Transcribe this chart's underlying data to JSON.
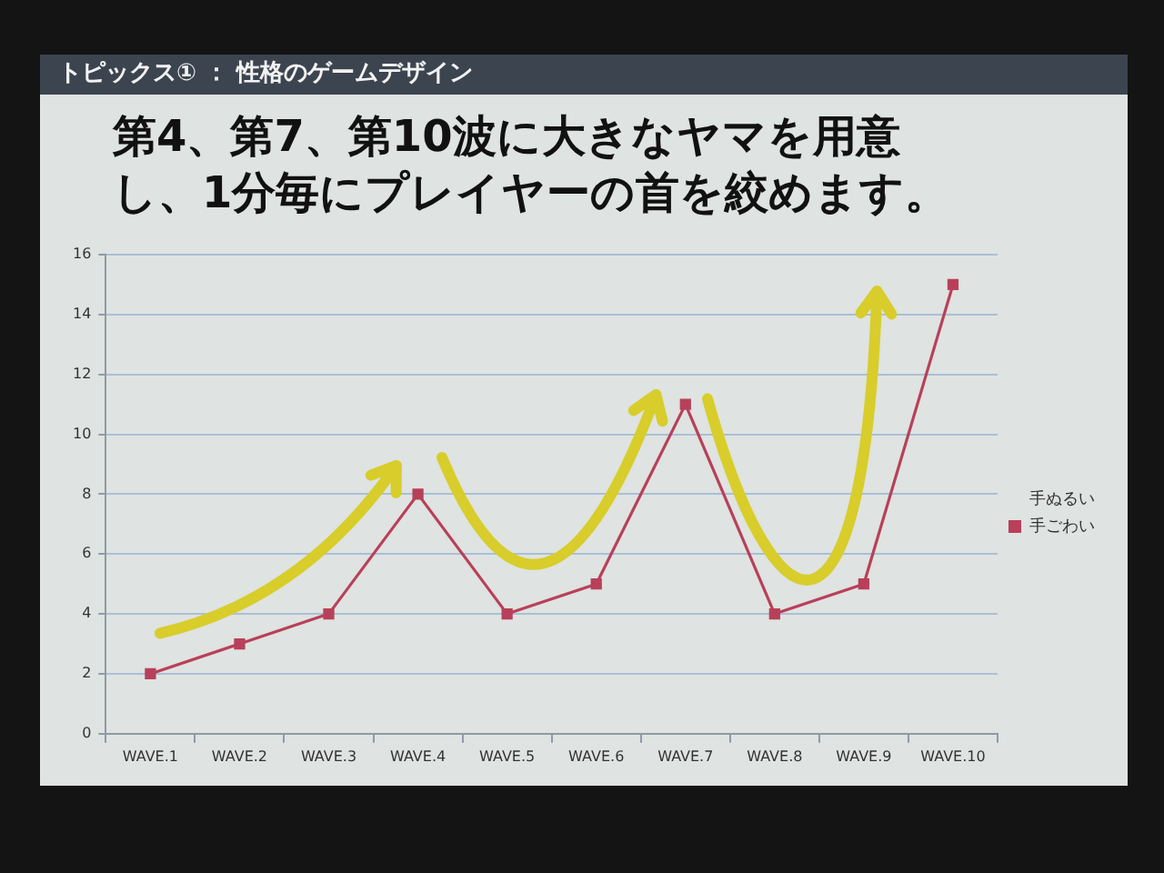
{
  "chart_data": {
    "type": "line",
    "title": "トピックス① ： 性格のゲームデザイン",
    "subtitle": "第4、第7、第10波に大きなヤマを用意し、1分毎にプレイヤーの首を絞めます。",
    "categories": [
      "WAVE.1",
      "WAVE.2",
      "WAVE.3",
      "WAVE.4",
      "WAVE.5",
      "WAVE.6",
      "WAVE.7",
      "WAVE.8",
      "WAVE.9",
      "WAVE.10"
    ],
    "series": [
      {
        "name": "手ぬるい",
        "values": [
          null,
          null,
          null,
          null,
          null,
          null,
          null,
          null,
          null,
          null
        ]
      },
      {
        "name": "手ごわい",
        "color": "#b8405a",
        "values": [
          2,
          3,
          4,
          8,
          4,
          5,
          11,
          4,
          5,
          15
        ]
      }
    ],
    "ylim": [
      0,
      16
    ],
    "yticks": [
      0,
      2,
      4,
      6,
      8,
      10,
      12,
      14,
      16
    ],
    "grid": "y",
    "legend": "right",
    "marker": "square"
  }
}
